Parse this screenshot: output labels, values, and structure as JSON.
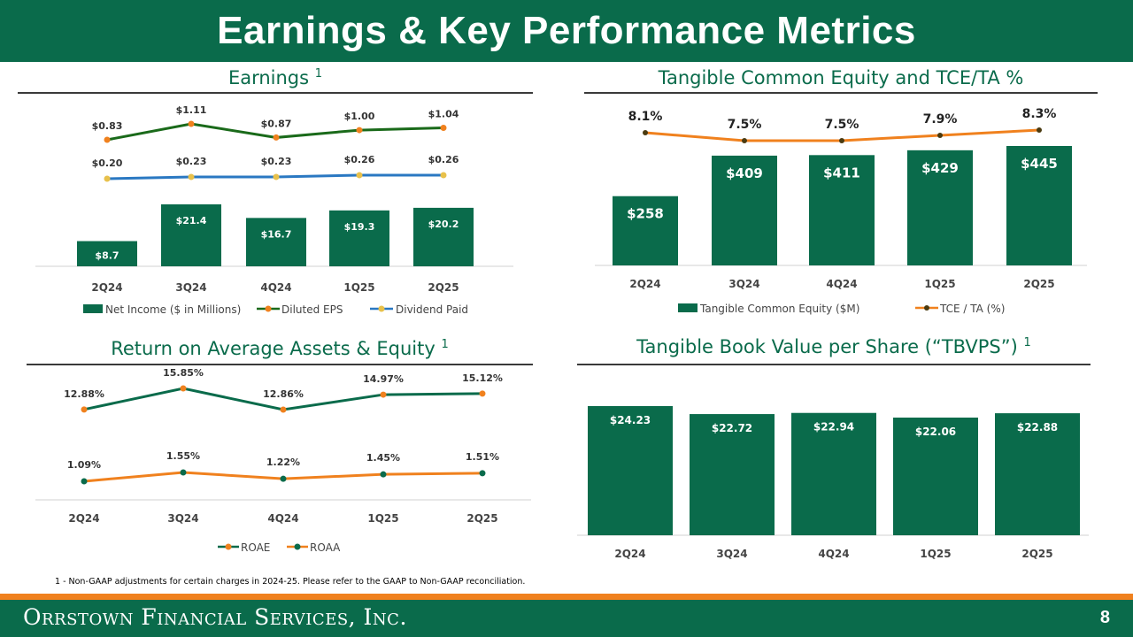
{
  "page": {
    "title": "Earnings & Key Performance Metrics",
    "footnote": "1 - Non-GAAP adjustments for certain charges in 2024-25. Please refer to the GAAP to Non-GAAP reconciliation.",
    "company": "Orrstown Financial Services, Inc.",
    "page_number": "8"
  },
  "colors": {
    "green": "#0a6b4b",
    "dark_green": "#1a6a1a",
    "orange": "#f0811e",
    "blue": "#2a78c2",
    "yellow": "#e8c14b"
  },
  "chart_data": [
    {
      "id": "earnings",
      "type": "bar",
      "title": "Earnings",
      "title_sup": "1",
      "categories": [
        "2Q24",
        "3Q24",
        "4Q24",
        "1Q25",
        "2Q25"
      ],
      "series": [
        {
          "name": "Net Income ($ in Millions)",
          "type": "bar",
          "values": [
            8.7,
            21.4,
            16.7,
            19.3,
            20.2
          ],
          "labels": [
            "$8.7",
            "$21.4",
            "$16.7",
            "$19.3",
            "$20.2"
          ]
        },
        {
          "name": "Diluted EPS",
          "type": "line",
          "values": [
            0.83,
            1.11,
            0.87,
            1.0,
            1.04
          ],
          "labels": [
            "$0.83",
            "$1.11",
            "$0.87",
            "$1.00",
            "$1.04"
          ]
        },
        {
          "name": "Dividend Paid",
          "type": "line",
          "values": [
            0.2,
            0.23,
            0.23,
            0.26,
            0.26
          ],
          "labels": [
            "$0.20",
            "$0.23",
            "$0.23",
            "$0.26",
            "$0.26"
          ]
        }
      ],
      "legend": [
        "Net Income ($ in Millions)",
        "Diluted EPS",
        "Dividend Paid"
      ],
      "legend_position": "bottom"
    },
    {
      "id": "tce",
      "type": "bar",
      "title": "Tangible Common Equity and TCE/TA %",
      "categories": [
        "2Q24",
        "3Q24",
        "4Q24",
        "1Q25",
        "2Q25"
      ],
      "series": [
        {
          "name": "Tangible Common Equity ($M)",
          "type": "bar",
          "values": [
            258,
            409,
            411,
            429,
            445
          ],
          "labels": [
            "$258",
            "$409",
            "$411",
            "$429",
            "$445"
          ]
        },
        {
          "name": "TCE / TA (%)",
          "type": "line",
          "values": [
            8.1,
            7.5,
            7.5,
            7.9,
            8.3
          ],
          "labels": [
            "8.1%",
            "7.5%",
            "7.5%",
            "7.9%",
            "8.3%"
          ]
        }
      ],
      "legend": [
        "Tangible Common Equity ($M)",
        "TCE / TA (%)"
      ],
      "legend_position": "bottom"
    },
    {
      "id": "returns",
      "type": "line",
      "title": "Return on Average Assets & Equity",
      "title_sup": "1",
      "categories": [
        "2Q24",
        "3Q24",
        "4Q24",
        "1Q25",
        "2Q25"
      ],
      "series": [
        {
          "name": "ROAE",
          "type": "line",
          "values": [
            12.88,
            15.85,
            12.86,
            14.97,
            15.12
          ],
          "labels": [
            "12.88%",
            "15.85%",
            "12.86%",
            "14.97%",
            "15.12%"
          ]
        },
        {
          "name": "ROAA",
          "type": "line",
          "values": [
            1.09,
            1.55,
            1.22,
            1.45,
            1.51
          ],
          "labels": [
            "1.09%",
            "1.55%",
            "1.22%",
            "1.45%",
            "1.51%"
          ]
        }
      ],
      "legend": [
        "ROAE",
        "ROAA"
      ],
      "legend_position": "bottom"
    },
    {
      "id": "tbvps",
      "type": "bar",
      "title": "Tangible Book Value per Share (“TBVPS”)",
      "title_sup": "1",
      "categories": [
        "2Q24",
        "3Q24",
        "4Q24",
        "1Q25",
        "2Q25"
      ],
      "series": [
        {
          "name": "TBVPS",
          "type": "bar",
          "values": [
            24.23,
            22.72,
            22.94,
            22.06,
            22.88
          ],
          "labels": [
            "$24.23",
            "$22.72",
            "$22.94",
            "$22.06",
            "$22.88"
          ]
        }
      ]
    }
  ]
}
